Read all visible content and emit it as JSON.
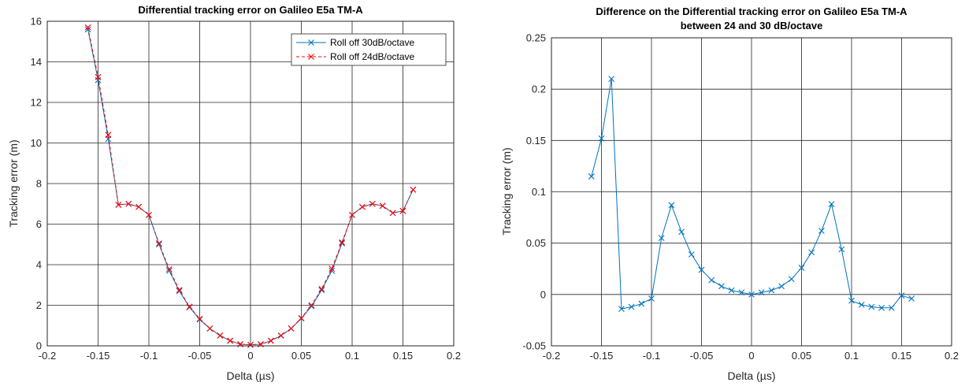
{
  "chart_data": [
    {
      "type": "line",
      "title": "Differential tracking error on Galileo E5a TM-A",
      "xlabel": "Delta (µs)",
      "ylabel": "Tracking error (m)",
      "xlim": [
        -0.2,
        0.2
      ],
      "ylim": [
        0,
        16
      ],
      "xticks": [
        "-0.2",
        "-0.15",
        "-0.1",
        "-0.05",
        "0",
        "0.05",
        "0.1",
        "0.15",
        "0.2"
      ],
      "yticks": [
        "0",
        "2",
        "4",
        "6",
        "8",
        "10",
        "12",
        "14",
        "16"
      ],
      "grid": true,
      "legend": "top-right",
      "x": [
        -0.16,
        -0.15,
        -0.14,
        -0.13,
        -0.12,
        -0.11,
        -0.1,
        -0.09,
        -0.08,
        -0.07,
        -0.06,
        -0.05,
        -0.04,
        -0.03,
        -0.02,
        -0.01,
        0,
        0.01,
        0.02,
        0.03,
        0.04,
        0.05,
        0.06,
        0.07,
        0.08,
        0.09,
        0.1,
        0.11,
        0.12,
        0.13,
        0.14,
        0.15,
        0.16
      ],
      "series": [
        {
          "name": "Roll off 30dB/octave",
          "color": "#0072BD",
          "style": "solid",
          "marker": "x",
          "values": [
            15.6,
            13.1,
            10.2,
            6.95,
            7.0,
            6.85,
            6.45,
            5.0,
            3.7,
            2.7,
            1.9,
            1.3,
            0.85,
            0.5,
            0.25,
            0.08,
            0.05,
            0.08,
            0.25,
            0.5,
            0.85,
            1.35,
            1.95,
            2.75,
            3.7,
            5.05,
            6.45,
            6.85,
            7.0,
            6.9,
            6.55,
            6.65,
            7.7
          ]
        },
        {
          "name": "Roll off 24dB/octave",
          "color": "#FF0000",
          "style": "dashed",
          "marker": "x",
          "values": [
            15.7,
            13.25,
            10.4,
            6.95,
            7.0,
            6.85,
            6.45,
            5.05,
            3.78,
            2.75,
            1.93,
            1.33,
            0.86,
            0.51,
            0.25,
            0.08,
            0.05,
            0.08,
            0.25,
            0.51,
            0.86,
            1.37,
            2.0,
            2.8,
            3.8,
            5.1,
            6.45,
            6.85,
            7.0,
            6.9,
            6.55,
            6.65,
            7.7
          ]
        }
      ]
    },
    {
      "type": "line",
      "title": "Difference on the Differential tracking error on Galileo E5a TM-A",
      "subtitle": "between 24 and 30 dB/octave",
      "xlabel": "Delta (µs)",
      "ylabel": "Tracking error (m)",
      "xlim": [
        -0.2,
        0.2
      ],
      "ylim": [
        -0.05,
        0.25
      ],
      "xticks": [
        "-0.2",
        "-0.15",
        "-0.1",
        "-0.05",
        "0",
        "0.05",
        "0.1",
        "0.15",
        "0.2"
      ],
      "yticks": [
        "-0.05",
        "0",
        "0.05",
        "0.1",
        "0.15",
        "0.2",
        "0.25"
      ],
      "grid": true,
      "x": [
        -0.16,
        -0.15,
        -0.14,
        -0.13,
        -0.12,
        -0.11,
        -0.1,
        -0.09,
        -0.08,
        -0.07,
        -0.06,
        -0.05,
        -0.04,
        -0.03,
        -0.02,
        -0.01,
        0,
        0.01,
        0.02,
        0.03,
        0.04,
        0.05,
        0.06,
        0.07,
        0.08,
        0.09,
        0.1,
        0.11,
        0.12,
        0.13,
        0.14,
        0.15,
        0.16
      ],
      "series": [
        {
          "color": "#0072BD",
          "style": "solid",
          "marker": "x",
          "values": [
            0.115,
            0.152,
            0.21,
            -0.014,
            -0.012,
            -0.009,
            -0.004,
            0.055,
            0.087,
            0.061,
            0.039,
            0.024,
            0.014,
            0.008,
            0.004,
            0.002,
            0.0,
            0.002,
            0.004,
            0.008,
            0.015,
            0.026,
            0.041,
            0.062,
            0.088,
            0.044,
            -0.006,
            -0.01,
            -0.012,
            -0.013,
            -0.013,
            -0.001,
            -0.004
          ]
        }
      ]
    }
  ]
}
